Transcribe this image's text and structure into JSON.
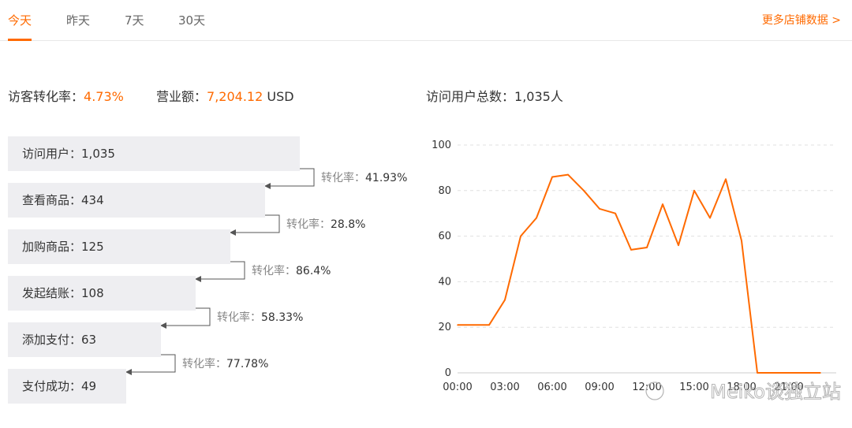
{
  "tabs": [
    {
      "label": "今天",
      "active": true
    },
    {
      "label": "昨天",
      "active": false
    },
    {
      "label": "7天",
      "active": false
    },
    {
      "label": "30天",
      "active": false
    }
  ],
  "more_link": "更多店铺数据 >",
  "summary": {
    "conversion_label": "访客转化率：",
    "conversion_value": "4.73%",
    "revenue_label": "营业额：",
    "revenue_value": "7,204.12",
    "revenue_currency": "USD",
    "total_users_label": "访问用户总数：",
    "total_users_value": "1,035人"
  },
  "funnel": {
    "stages": [
      {
        "label": "访问用户：",
        "value": 1035,
        "display": "1,035"
      },
      {
        "label": "查看商品：",
        "value": 434,
        "display": "434"
      },
      {
        "label": "加购商品：",
        "value": 125,
        "display": "125"
      },
      {
        "label": "发起结账：",
        "value": 108,
        "display": "108"
      },
      {
        "label": "添加支付：",
        "value": 63,
        "display": "63"
      },
      {
        "label": "支付成功：",
        "value": 49,
        "display": "49"
      }
    ],
    "conversion_label": "转化率：",
    "conversions": [
      "41.93%",
      "28.8%",
      "86.4%",
      "58.33%",
      "77.78%"
    ]
  },
  "chart_data": {
    "type": "line",
    "title": "",
    "xlabel": "",
    "ylabel": "",
    "ylim": [
      0,
      100
    ],
    "y_ticks": [
      0,
      20,
      40,
      60,
      80,
      100
    ],
    "x_ticks": [
      "00:00",
      "03:00",
      "06:00",
      "09:00",
      "12:00",
      "15:00",
      "18:00",
      "21:00"
    ],
    "grid": true,
    "color": "#ff6a00",
    "series": [
      {
        "x": [
          "00:00",
          "01:00",
          "02:00",
          "03:00",
          "04:00",
          "05:00",
          "06:00",
          "07:00",
          "08:00",
          "09:00",
          "10:00",
          "11:00",
          "12:00",
          "13:00",
          "14:00",
          "15:00",
          "16:00",
          "17:00",
          "18:00",
          "19:00",
          "20:00",
          "21:00",
          "22:00",
          "23:00"
        ],
        "values": [
          21,
          21,
          21,
          32,
          60,
          68,
          86,
          87,
          80,
          72,
          70,
          54,
          55,
          74,
          56,
          80,
          68,
          85,
          58,
          0,
          0,
          0,
          0,
          0
        ]
      }
    ]
  },
  "watermark": "Meiko谈独立站"
}
